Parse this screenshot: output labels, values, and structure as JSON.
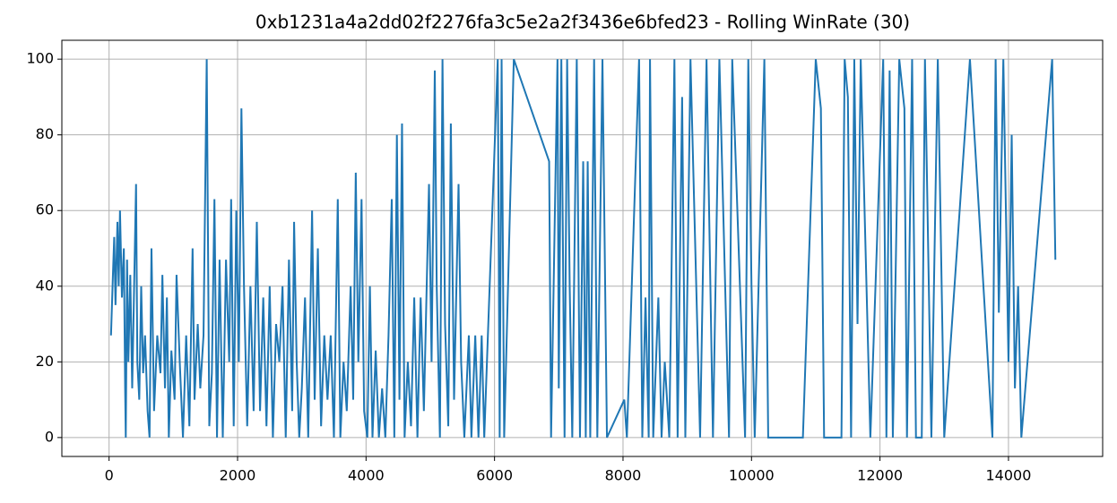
{
  "chart_data": {
    "type": "line",
    "title": "0xb1231a4a2dd02f2276fa3c5e2a2f3436e6bfed23 - Rolling WinRate (30)",
    "x": [
      30,
      60,
      80,
      100,
      130,
      150,
      170,
      200,
      230,
      250,
      260,
      280,
      300,
      330,
      360,
      390,
      420,
      440,
      470,
      500,
      530,
      560,
      600,
      630,
      660,
      700,
      750,
      800,
      830,
      870,
      900,
      930,
      970,
      1020,
      1050,
      1100,
      1150,
      1200,
      1250,
      1300,
      1330,
      1380,
      1420,
      1470,
      1520,
      1560,
      1600,
      1640,
      1680,
      1720,
      1770,
      1820,
      1870,
      1900,
      1940,
      1980,
      2020,
      2060,
      2100,
      2150,
      2200,
      2250,
      2300,
      2350,
      2400,
      2450,
      2500,
      2550,
      2600,
      2650,
      2700,
      2750,
      2800,
      2850,
      2880,
      2920,
      2960,
      3000,
      3050,
      3100,
      3160,
      3200,
      3250,
      3300,
      3350,
      3400,
      3450,
      3500,
      3560,
      3600,
      3650,
      3700,
      3760,
      3800,
      3840,
      3880,
      3930,
      3970,
      4020,
      4060,
      4100,
      4150,
      4200,
      4250,
      4300,
      4350,
      4400,
      4440,
      4480,
      4520,
      4560,
      4600,
      4650,
      4700,
      4750,
      4800,
      4850,
      4900,
      4980,
      5020,
      5070,
      5100,
      5150,
      5190,
      5230,
      5280,
      5320,
      5370,
      5440,
      5480,
      5530,
      5600,
      5640,
      5700,
      5750,
      5800,
      5840,
      6050,
      6080,
      6110,
      6150,
      6300,
      6850,
      6880,
      6980,
      7000,
      7040,
      7090,
      7130,
      7170,
      7210,
      7280,
      7330,
      7380,
      7420,
      7450,
      7490,
      7550,
      7600,
      7680,
      7750,
      8020,
      8060,
      8250,
      8300,
      8350,
      8400,
      8420,
      8470,
      8550,
      8600,
      8650,
      8720,
      8800,
      8850,
      8920,
      8970,
      9050,
      9200,
      9300,
      9400,
      9500,
      9650,
      9700,
      9900,
      9950,
      10000,
      10050,
      10200,
      10260,
      10500,
      10600,
      10800,
      11000,
      11080,
      11130,
      11400,
      11450,
      11500,
      11550,
      11600,
      11650,
      11700,
      11850,
      12050,
      12100,
      12150,
      12200,
      12300,
      12380,
      12420,
      12500,
      12560,
      12650,
      12700,
      12800,
      12900,
      13000,
      13400,
      13750,
      13800,
      13850,
      13920,
      14000,
      14050,
      14100,
      14150,
      14200,
      14680,
      14730
    ],
    "series": [
      {
        "color": "#1f77b4",
        "values": [
          27,
          43,
          53,
          35,
          57,
          40,
          60,
          37,
          50,
          13,
          0,
          47,
          20,
          43,
          13,
          40,
          67,
          20,
          10,
          40,
          17,
          27,
          7,
          0,
          50,
          7,
          27,
          17,
          43,
          13,
          37,
          0,
          23,
          10,
          43,
          20,
          0,
          27,
          3,
          50,
          10,
          30,
          13,
          27,
          100,
          3,
          17,
          63,
          0,
          47,
          0,
          47,
          20,
          63,
          3,
          60,
          20,
          87,
          40,
          3,
          40,
          7,
          57,
          7,
          37,
          3,
          40,
          0,
          30,
          20,
          40,
          0,
          47,
          7,
          57,
          20,
          0,
          13,
          37,
          0,
          60,
          10,
          50,
          3,
          27,
          10,
          27,
          0,
          63,
          0,
          20,
          7,
          40,
          10,
          70,
          20,
          63,
          7,
          0,
          40,
          0,
          23,
          0,
          13,
          0,
          27,
          63,
          0,
          80,
          10,
          83,
          0,
          20,
          3,
          37,
          0,
          37,
          7,
          67,
          20,
          97,
          40,
          0,
          100,
          30,
          3,
          83,
          10,
          67,
          20,
          0,
          27,
          0,
          27,
          0,
          27,
          0,
          100,
          0,
          100,
          0,
          100,
          73,
          0,
          100,
          13,
          100,
          0,
          100,
          40,
          0,
          100,
          0,
          73,
          0,
          73,
          0,
          100,
          0,
          100,
          0,
          10,
          0,
          100,
          0,
          37,
          0,
          100,
          0,
          37,
          0,
          20,
          0,
          100,
          0,
          90,
          0,
          100,
          0,
          100,
          0,
          100,
          0,
          100,
          0,
          100,
          40,
          0,
          100,
          0,
          0,
          0,
          0,
          100,
          87,
          0,
          0,
          100,
          90,
          0,
          100,
          30,
          100,
          0,
          100,
          0,
          97,
          0,
          100,
          87,
          0,
          100,
          0,
          0,
          100,
          0,
          100,
          0,
          100,
          0,
          100,
          33,
          100,
          20,
          80,
          13,
          40,
          0,
          100,
          47
        ]
      }
    ],
    "xlim": [
      -735,
      15466
    ],
    "ylim": [
      -5,
      105
    ],
    "xticks": [
      0,
      2000,
      4000,
      6000,
      8000,
      10000,
      12000,
      14000
    ],
    "yticks": [
      0,
      20,
      40,
      60,
      80,
      100
    ],
    "grid": true
  }
}
